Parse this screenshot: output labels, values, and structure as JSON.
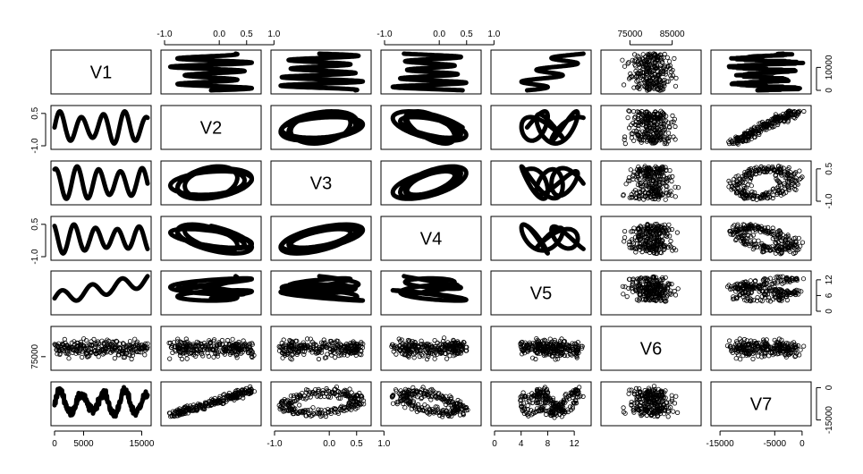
{
  "chart_data": {
    "type": "scatter",
    "title": "",
    "subtitle": "",
    "variables": [
      "V1",
      "V2",
      "V3",
      "V4",
      "V5",
      "V6",
      "V7"
    ],
    "ranges": {
      "V1": [
        0,
        16000
      ],
      "V2": [
        -1.0,
        0.7
      ],
      "V3": [
        -1.0,
        0.7
      ],
      "V4": [
        -1.0,
        0.7
      ],
      "V5": [
        0,
        14
      ],
      "V6": [
        69000,
        91000
      ],
      "V7": [
        -16000,
        1000
      ]
    },
    "axis_ticks": {
      "top": [
        {
          "col": 1,
          "labels": [
            "-1.0",
            "0.0",
            "0.5",
            "1.0"
          ],
          "values": [
            -1.0,
            0.0,
            0.5,
            1.0
          ]
        },
        {
          "col": 3,
          "labels": [
            "-1.0",
            "0.0",
            "0.5",
            "1.0"
          ],
          "values": [
            -1.0,
            0.0,
            0.5,
            1.0
          ]
        },
        {
          "col": 5,
          "labels": [
            "75000",
            "85000"
          ],
          "values": [
            75000,
            85000
          ]
        }
      ],
      "bottom": [
        {
          "col": 0,
          "labels": [
            "0",
            "5000",
            "15000"
          ],
          "values": [
            0,
            5000,
            15000
          ]
        },
        {
          "col": 2,
          "labels": [
            "-1.0",
            "0.0",
            "0.5",
            "1.0"
          ],
          "values": [
            -1.0,
            0.0,
            0.5,
            1.0
          ]
        },
        {
          "col": 4,
          "labels": [
            "0",
            "4",
            "8",
            "12"
          ],
          "values": [
            0,
            4,
            8,
            12
          ]
        },
        {
          "col": 6,
          "labels": [
            "-15000",
            "-5000",
            "0"
          ],
          "values": [
            -15000,
            -5000,
            0
          ]
        }
      ],
      "left": [
        {
          "row": 1,
          "labels": [
            "-1.0",
            "0.5"
          ],
          "values": [
            -1.0,
            0.5
          ]
        },
        {
          "row": 3,
          "labels": [
            "-1.0",
            "0.5"
          ],
          "values": [
            -1.0,
            0.5
          ]
        },
        {
          "row": 5,
          "labels": [
            "75000"
          ],
          "values": [
            75000
          ]
        }
      ],
      "right": [
        {
          "row": 0,
          "labels": [
            "0",
            "10000"
          ],
          "values": [
            0,
            10000
          ]
        },
        {
          "row": 2,
          "labels": [
            "-1.0",
            "0.5"
          ],
          "values": [
            -1.0,
            0.5
          ]
        },
        {
          "row": 4,
          "labels": [
            "0",
            "6",
            "12"
          ],
          "values": [
            0,
            6,
            12
          ]
        },
        {
          "row": 6,
          "labels": [
            "-15000",
            "0"
          ],
          "values": [
            -15000,
            0
          ]
        }
      ]
    },
    "grid": false,
    "legend": "none",
    "colors": {
      "points": "#000000",
      "background": "#ffffff"
    }
  }
}
